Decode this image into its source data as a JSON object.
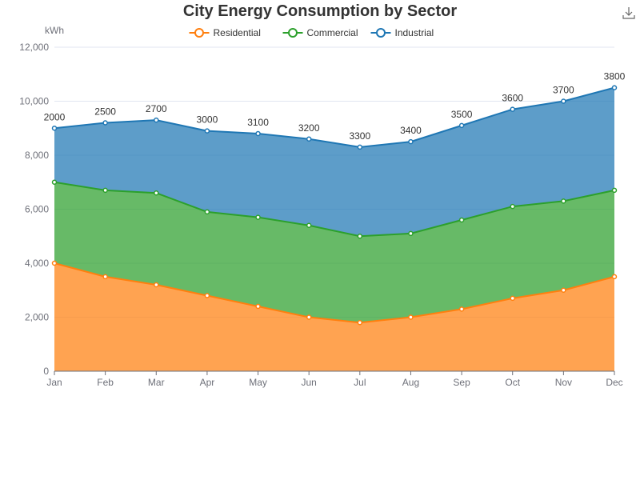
{
  "chart_data": {
    "type": "area",
    "stacked": true,
    "title": "City Energy Consumption by Sector",
    "ylabel": "kWh",
    "xlabel": "",
    "categories": [
      "Jan",
      "Feb",
      "Mar",
      "Apr",
      "May",
      "Jun",
      "Jul",
      "Aug",
      "Sep",
      "Oct",
      "Nov",
      "Dec"
    ],
    "y_ticks": [
      "0",
      "2,000",
      "4,000",
      "6,000",
      "8,000",
      "10,000",
      "12,000"
    ],
    "ylim": [
      0,
      12000
    ],
    "grid": true,
    "legend_position": "top-center",
    "series": [
      {
        "name": "Residential",
        "color": "#ff7f0e",
        "values": [
          4000,
          3500,
          3200,
          2800,
          2400,
          2000,
          1800,
          2000,
          2300,
          2700,
          3000,
          3500
        ]
      },
      {
        "name": "Commercial",
        "color": "#2ca02c",
        "values": [
          3000,
          3200,
          3400,
          3100,
          3300,
          3400,
          3200,
          3100,
          3300,
          3400,
          3300,
          3200
        ]
      },
      {
        "name": "Industrial",
        "color": "#1f77b4",
        "values": [
          2000,
          2500,
          2700,
          3000,
          3100,
          3200,
          3300,
          3400,
          3500,
          3600,
          3700,
          3800
        ],
        "show_labels": true
      }
    ]
  },
  "toolbox": {
    "icon": "download-icon"
  }
}
